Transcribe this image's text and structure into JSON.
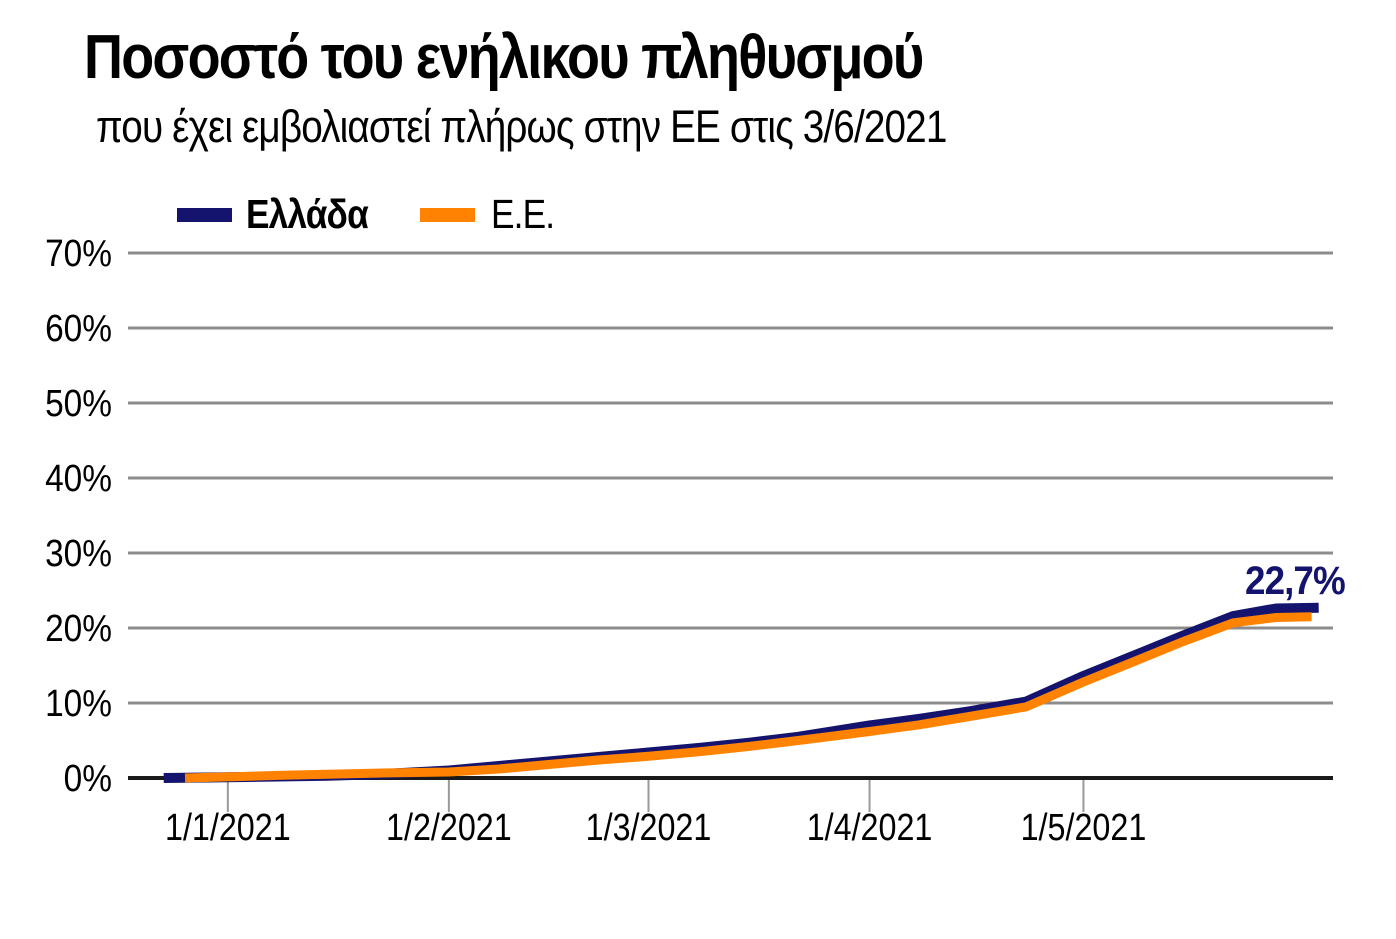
{
  "chart_data": {
    "type": "line",
    "title": "Ποσοστό του ενήλικου πληθυσμού",
    "subtitle": "που έχει εμβολιαστεί πλήρως στην ΕΕ στις 3/6/2021",
    "legend_position": "top-left",
    "grid": true,
    "x_axis": {
      "min": "2020-12-18",
      "max": "2021-06-05",
      "ticks": [
        {
          "date": "2021-01-01",
          "label": "1/1/2021"
        },
        {
          "date": "2021-02-01",
          "label": "1/2/2021"
        },
        {
          "date": "2021-03-01",
          "label": "1/3/2021"
        },
        {
          "date": "2021-04-01",
          "label": "1/4/2021"
        },
        {
          "date": "2021-05-01",
          "label": "1/5/2021"
        }
      ]
    },
    "y_axis": {
      "min": 0,
      "max": 70,
      "step": 10,
      "unit": "%",
      "ticks": [
        {
          "value": 0,
          "label": "0%"
        },
        {
          "value": 10,
          "label": "10%"
        },
        {
          "value": 20,
          "label": "20%"
        },
        {
          "value": 30,
          "label": "30%"
        },
        {
          "value": 40,
          "label": "40%"
        },
        {
          "value": 50,
          "label": "50%"
        },
        {
          "value": 60,
          "label": "60%"
        },
        {
          "value": 70,
          "label": "70%"
        }
      ]
    },
    "series": [
      {
        "id": "greece",
        "name": "Ελλάδα",
        "color": "#14146e",
        "stroke_width": 10,
        "points": [
          [
            "2020-12-23",
            0.0
          ],
          [
            "2021-01-01",
            0.1
          ],
          [
            "2021-01-08",
            0.2
          ],
          [
            "2021-01-15",
            0.3
          ],
          [
            "2021-01-22",
            0.5
          ],
          [
            "2021-02-01",
            1.0
          ],
          [
            "2021-02-08",
            1.6
          ],
          [
            "2021-02-15",
            2.2
          ],
          [
            "2021-02-22",
            2.8
          ],
          [
            "2021-03-01",
            3.4
          ],
          [
            "2021-03-08",
            4.0
          ],
          [
            "2021-03-15",
            4.7
          ],
          [
            "2021-03-22",
            5.5
          ],
          [
            "2021-04-01",
            7.0
          ],
          [
            "2021-04-08",
            7.9
          ],
          [
            "2021-04-15",
            8.9
          ],
          [
            "2021-04-23",
            10.2
          ],
          [
            "2021-05-01",
            13.6
          ],
          [
            "2021-05-08",
            16.3
          ],
          [
            "2021-05-15",
            19.0
          ],
          [
            "2021-05-22",
            21.6
          ],
          [
            "2021-05-28",
            22.6
          ],
          [
            "2021-06-03",
            22.7
          ]
        ]
      },
      {
        "id": "eu",
        "name": "Ε.Ε.",
        "color": "#ff8200",
        "stroke_width": 9,
        "points": [
          [
            "2020-12-26",
            0.0
          ],
          [
            "2021-01-01",
            0.15
          ],
          [
            "2021-01-08",
            0.35
          ],
          [
            "2021-01-15",
            0.5
          ],
          [
            "2021-01-22",
            0.65
          ],
          [
            "2021-02-01",
            0.8
          ],
          [
            "2021-02-08",
            1.2
          ],
          [
            "2021-02-15",
            1.8
          ],
          [
            "2021-02-22",
            2.4
          ],
          [
            "2021-03-01",
            2.9
          ],
          [
            "2021-03-08",
            3.5
          ],
          [
            "2021-03-15",
            4.2
          ],
          [
            "2021-03-22",
            5.0
          ],
          [
            "2021-04-01",
            6.2
          ],
          [
            "2021-04-08",
            7.1
          ],
          [
            "2021-04-15",
            8.2
          ],
          [
            "2021-04-23",
            9.5
          ],
          [
            "2021-05-01",
            12.8
          ],
          [
            "2021-05-08",
            15.5
          ],
          [
            "2021-05-15",
            18.2
          ],
          [
            "2021-05-22",
            20.7
          ],
          [
            "2021-05-28",
            21.4
          ],
          [
            "2021-06-02",
            21.5
          ]
        ]
      }
    ],
    "annotation": {
      "text": "22,7%",
      "series": "Ελλάδα",
      "color": "#14146e"
    },
    "colors": {
      "grid": "#8c8c8c",
      "axis": "#1a1a1a",
      "tick": "#999999",
      "text": "#000000",
      "background": "#ffffff"
    }
  }
}
